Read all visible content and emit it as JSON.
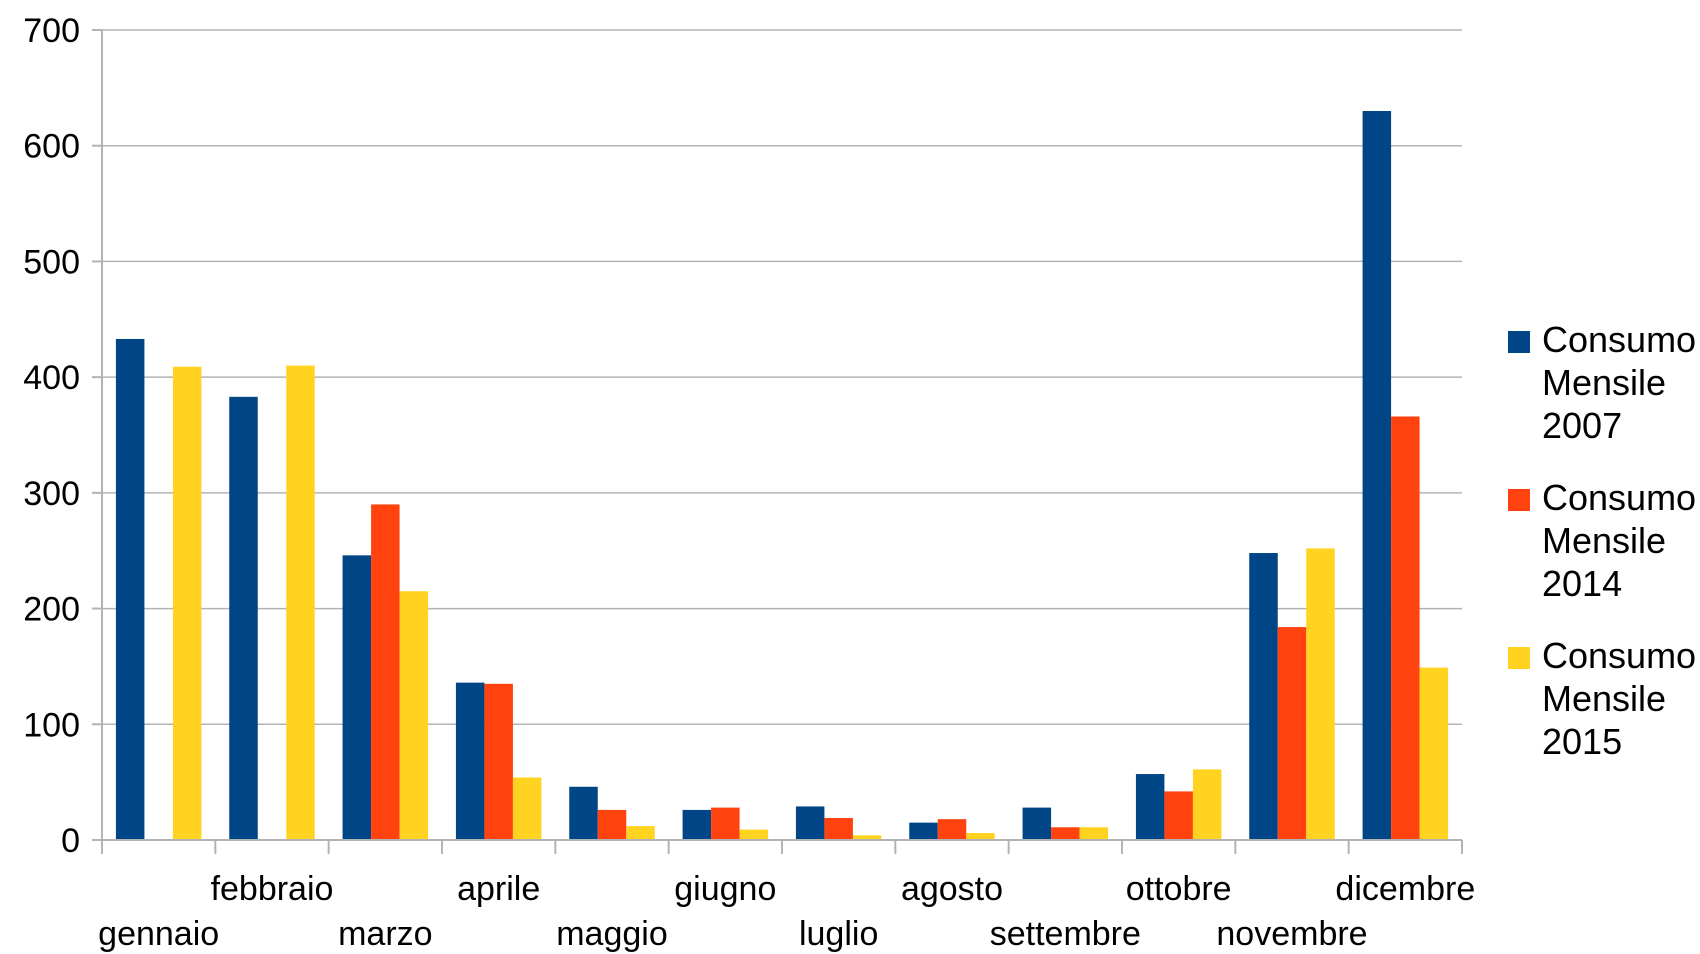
{
  "chart_data": {
    "type": "bar",
    "title": "",
    "xlabel": "",
    "ylabel": "",
    "ylim": [
      0,
      700
    ],
    "yticks": [
      0,
      100,
      200,
      300,
      400,
      500,
      600,
      700
    ],
    "grid": true,
    "legend_position": "right",
    "categories": [
      "gennaio",
      "febbraio",
      "marzo",
      "aprile",
      "maggio",
      "giugno",
      "luglio",
      "agosto",
      "settembre",
      "ottobre",
      "novembre",
      "dicembre"
    ],
    "series": [
      {
        "name": "Consumo Mensile 2007",
        "legend_lines": [
          "Consumo",
          "Mensile",
          "2007"
        ],
        "color": "#004586",
        "values": [
          433,
          383,
          246,
          136,
          46,
          26,
          29,
          15,
          28,
          57,
          248,
          630
        ]
      },
      {
        "name": "Consumo Mensile 2014",
        "legend_lines": [
          "Consumo",
          "Mensile",
          "2014"
        ],
        "color": "#ff420e",
        "values": [
          0,
          0,
          290,
          135,
          26,
          28,
          19,
          18,
          11,
          42,
          184,
          366
        ]
      },
      {
        "name": "Consumo Mensile 2015",
        "legend_lines": [
          "Consumo",
          "Mensile",
          "2015"
        ],
        "color": "#ffd320",
        "values": [
          409,
          410,
          215,
          54,
          12,
          9,
          4,
          6,
          11,
          61,
          252,
          149
        ]
      }
    ]
  }
}
